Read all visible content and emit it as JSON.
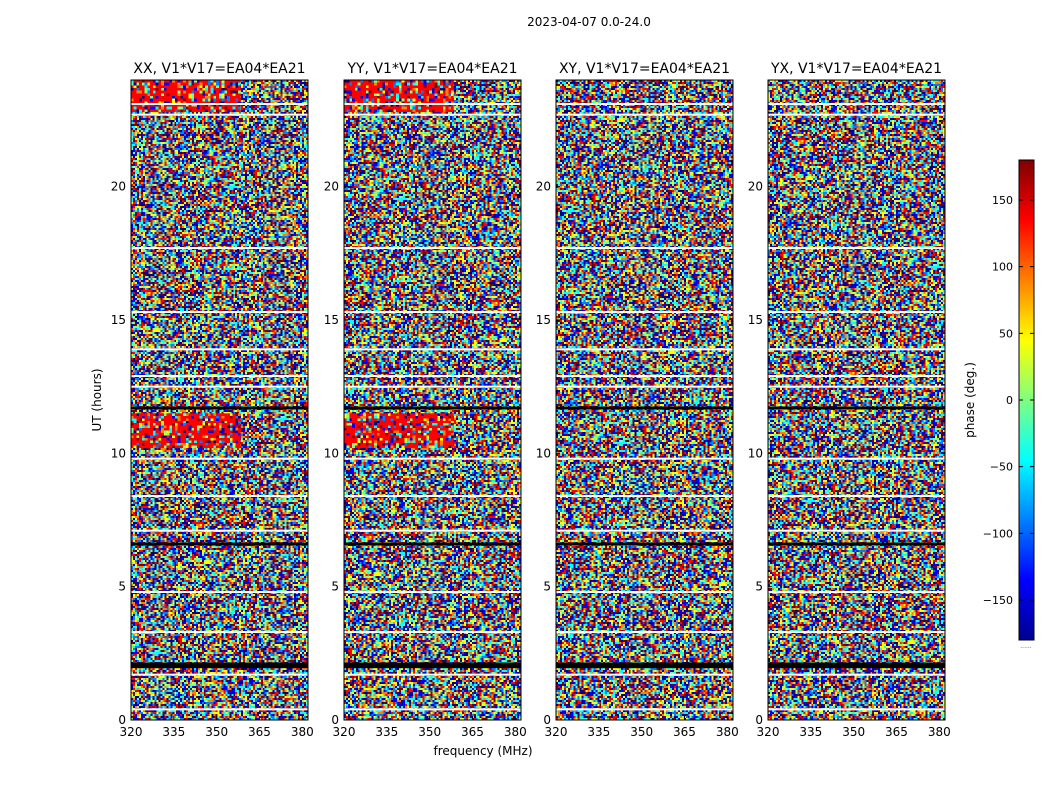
{
  "chart_data": {
    "type": "heatmap",
    "title": "2023-04-07 0.0-24.0",
    "xlabel": "frequency (MHz)",
    "ylabel": "UT (hours)",
    "xlim": [
      320,
      382
    ],
    "ylim": [
      0,
      24
    ],
    "xticks": [
      "320",
      "335",
      "350",
      "365",
      "380"
    ],
    "xtick_values": [
      320,
      335,
      350,
      365,
      380
    ],
    "yticks": [
      "0",
      "5",
      "10",
      "15",
      "20"
    ],
    "ytick_values": [
      0,
      5,
      10,
      15,
      20
    ],
    "colorbar": {
      "label": "phase (deg.)",
      "range": [
        -180,
        180
      ],
      "ticks": [
        "150",
        "100",
        "50",
        "0",
        "−50",
        "−100",
        "−150"
      ],
      "tick_values": [
        150,
        100,
        50,
        0,
        -50,
        -100,
        -150
      ],
      "colormap": [
        "#00008f",
        "#0000ff",
        "#0080ff",
        "#00ffff",
        "#80ff80",
        "#ffff00",
        "#ff8000",
        "#ff0000",
        "#800000"
      ],
      "bottom_label": "......"
    },
    "panels": [
      {
        "name": "XX, V1*V17=EA04*EA21"
      },
      {
        "name": "YY, V1*V17=EA04*EA21"
      },
      {
        "name": "XY, V1*V17=EA04*EA21"
      },
      {
        "name": "YX, V1*V17=EA04*EA21"
      }
    ],
    "flagged_rows_hours": [
      0.4,
      1.7,
      3.3,
      4.8,
      7.1,
      8.4,
      9.8,
      12.5,
      12.9,
      13.9,
      15.3,
      17.7,
      22.7,
      23.1
    ],
    "dark_rows_hours": [
      2.0,
      2.1,
      11.7,
      6.6
    ]
  }
}
